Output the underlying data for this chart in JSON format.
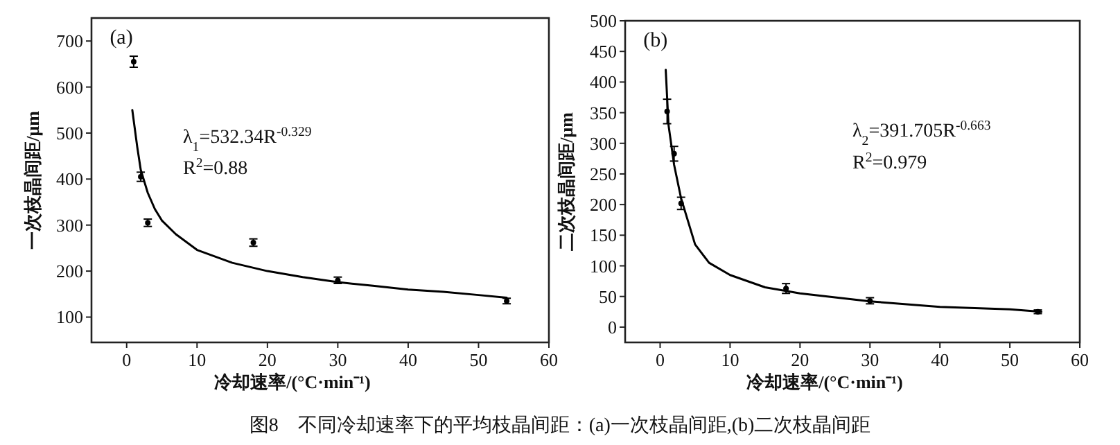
{
  "chart_data": [
    {
      "type": "scatter",
      "xlabel": "冷却速率/(°C·min⁻¹)",
      "ylabel": "一次枝晶间距/μm",
      "xlim": [
        -5,
        60
      ],
      "ylim": [
        45,
        750
      ],
      "xticks": [
        0,
        10,
        20,
        30,
        40,
        50,
        60
      ],
      "yticks": [
        100,
        200,
        300,
        400,
        500,
        600,
        700
      ],
      "annotations": [
        "(a)",
        "λ$_{1}$=532.34R$^{-0.329}$",
        "R$^{2}$=0.88",
        "图8　不同冷却速率下的平均枝晶间距：(a)一次枝晶间距,(b)二次枝晶间距"
      ],
      "series": [
        {
          "marker": "circle",
          "color": "#000000",
          "x": [
            1,
            2,
            3,
            18,
            30,
            54
          ],
          "values": [
            655,
            405,
            305,
            262,
            180,
            135
          ],
          "errors": [
            12,
            10,
            8,
            8,
            7,
            6
          ]
        },
        {
          "type": "line",
          "color": "#000000",
          "x": [
            0.8,
            1.5,
            2,
            3,
            4,
            5,
            7,
            10,
            15,
            20,
            25,
            30,
            35,
            40,
            45,
            50,
            54
          ],
          "values": [
            550,
            470,
            420,
            370,
            335,
            310,
            280,
            246,
            218,
            200,
            187,
            176,
            168,
            160,
            155,
            148,
            142
          ]
        }
      ]
    },
    {
      "type": "scatter",
      "xlabel": "冷却速率/(°C·min⁻¹)",
      "ylabel": "二次枝晶间距/μm",
      "xlim": [
        -5,
        60
      ],
      "ylim": [
        -25,
        500
      ],
      "xticks": [
        0,
        10,
        20,
        30,
        40,
        50,
        60
      ],
      "yticks": [
        0,
        50,
        100,
        150,
        200,
        250,
        300,
        350,
        400,
        450,
        500
      ],
      "annotations": [
        "(b)",
        "λ$_{2}$=391.705R$^{-0.663}$",
        "R$^{2}$=0.979"
      ],
      "series": [
        {
          "marker": "circle",
          "color": "#000000",
          "x": [
            1,
            2,
            3,
            18,
            30,
            54
          ],
          "values": [
            352,
            283,
            202,
            63,
            43,
            25
          ],
          "errors": [
            20,
            12,
            10,
            8,
            5,
            3
          ]
        },
        {
          "type": "line",
          "color": "#000000",
          "x": [
            0.8,
            1.2,
            2,
            3,
            5,
            7,
            10,
            15,
            20,
            30,
            40,
            50,
            54.5
          ],
          "values": [
            420,
            330,
            265,
            210,
            135,
            105,
            85,
            65,
            55,
            42,
            33,
            29,
            25
          ]
        }
      ]
    }
  ]
}
